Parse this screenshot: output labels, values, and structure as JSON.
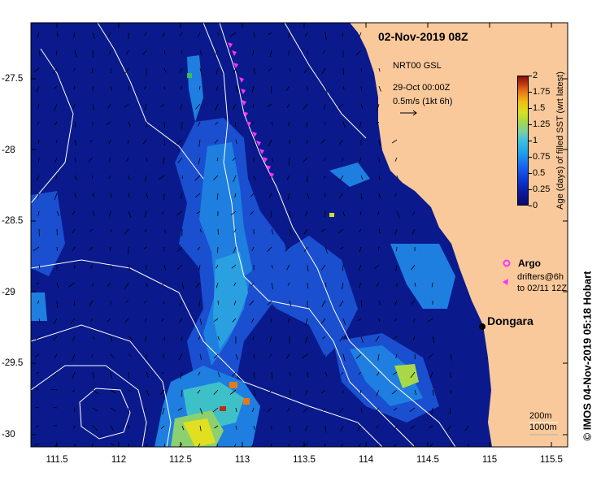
{
  "map": {
    "title": "02-Nov-2019 08Z",
    "vector_info": {
      "line1": "NRT00 GSL",
      "line2": "29-Oct 00:00Z",
      "line3": "0.5m/s (1kt 6h)"
    },
    "extent": {
      "lon_min": 111.3,
      "lon_max": 115.65,
      "lat_min": -30.1,
      "lat_max": -27.1
    },
    "x_ticks": [
      "111.5",
      "112",
      "112.5",
      "113",
      "113.5",
      "114",
      "114.5",
      "115",
      "115.5"
    ],
    "x_tick_values": [
      111.5,
      112,
      112.5,
      113,
      113.5,
      114,
      114.5,
      115,
      115.5
    ],
    "y_ticks": [
      "-27.5",
      "-28",
      "-28.5",
      "-29",
      "-29.5",
      "-30"
    ],
    "y_tick_values": [
      -27.5,
      -28,
      -28.5,
      -29,
      -29.5,
      -30
    ],
    "colorbar": {
      "label": "Age (days) of filled SST (wrt latest)",
      "ticks": [
        "0",
        "0.25",
        "0.5",
        "0.75",
        "1",
        "1.25",
        "1.5",
        "1.75",
        "2"
      ],
      "tick_values": [
        0,
        0.25,
        0.5,
        0.75,
        1,
        1.25,
        1.5,
        1.75,
        2
      ],
      "range": [
        0,
        2
      ]
    },
    "legend": {
      "argo": "Argo",
      "drifters_line1": "drifters@6h",
      "drifters_line2": "to 02/11 12Z"
    },
    "places": [
      {
        "name": "Dongara",
        "lon": 114.93,
        "lat": -29.25
      }
    ],
    "contour_legend": {
      "depth1": "200m",
      "depth2": "1000m"
    },
    "credit": "© IMOS 04-Nov-2019 05:18 Hobart",
    "colors": {
      "ocean": "#0a1a8c",
      "land": "#f9c99b",
      "argo_marker": "#ff30ff",
      "drifter_marker": "#ff30ff",
      "contour": "#ffffff",
      "age_scale": [
        "#0a0a6e",
        "#0b3ad8",
        "#1e9ee8",
        "#7ad0a0",
        "#d8e020",
        "#e87818",
        "#8a0c0c"
      ]
    }
  }
}
